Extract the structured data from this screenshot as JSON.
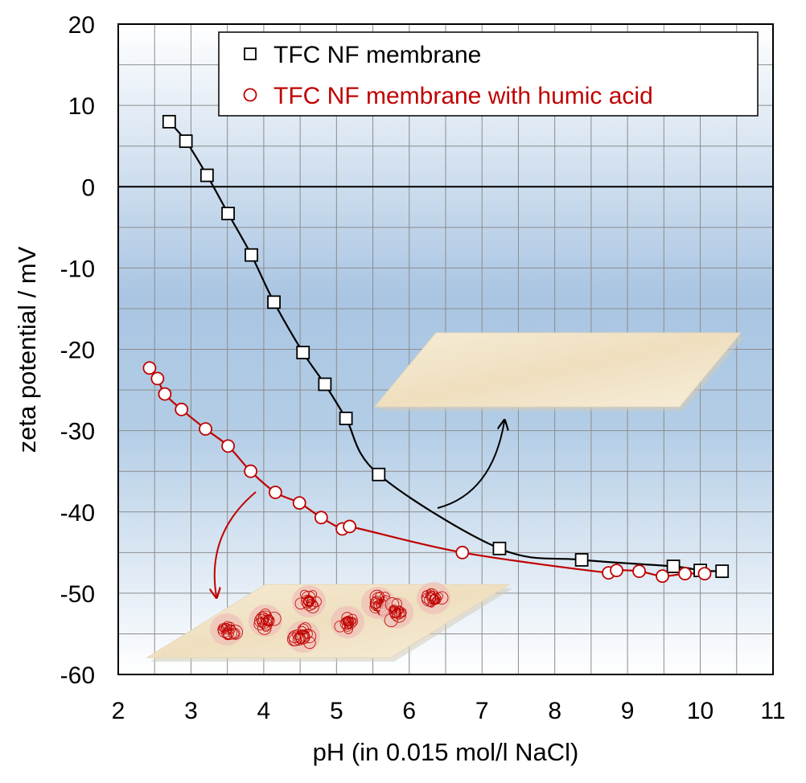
{
  "chart_data": {
    "type": "scatter",
    "title": "",
    "xlabel": "pH (in 0.015 mol/l NaCl)",
    "ylabel": "zeta potential / mV",
    "xlim": [
      2,
      11
    ],
    "ylim": [
      -60,
      20
    ],
    "xticks": [
      "2",
      "3",
      "4",
      "5",
      "6",
      "7",
      "8",
      "9",
      "10",
      "11"
    ],
    "yticks": [
      "20",
      "10",
      "0",
      "-10",
      "-20",
      "-30",
      "-40",
      "-50",
      "-60"
    ],
    "grid": true,
    "legend_position": "top-right",
    "background": "vertical gradient, white at top to light blue in the middle to white at bottom",
    "series": [
      {
        "name": "TFC NF membrane",
        "marker": "open-square",
        "color": "#000000",
        "x": [
          2.7,
          2.93,
          3.22,
          3.51,
          3.83,
          4.14,
          4.54,
          4.84,
          5.13,
          5.58,
          7.24,
          8.37,
          9.63,
          10.0,
          10.3
        ],
        "y": [
          8.0,
          5.6,
          1.4,
          -3.3,
          -8.4,
          -14.2,
          -20.4,
          -24.3,
          -28.5,
          -35.4,
          -44.5,
          -45.9,
          -46.7,
          -47.2,
          -47.3
        ]
      },
      {
        "name": "TFC NF membrane with humic acid",
        "marker": "open-circle",
        "color": "#c00000",
        "x": [
          2.43,
          2.54,
          2.64,
          2.87,
          3.2,
          3.51,
          3.82,
          4.16,
          4.49,
          4.79,
          5.08,
          5.18,
          6.73,
          8.74,
          8.85,
          9.16,
          9.48,
          9.79,
          10.06
        ],
        "y": [
          -22.3,
          -23.6,
          -25.5,
          -27.4,
          -29.8,
          -31.9,
          -35.0,
          -37.6,
          -38.9,
          -40.7,
          -42.1,
          -41.8,
          -45.0,
          -47.5,
          -47.2,
          -47.3,
          -47.9,
          -47.6,
          -47.6
        ]
      }
    ]
  }
}
